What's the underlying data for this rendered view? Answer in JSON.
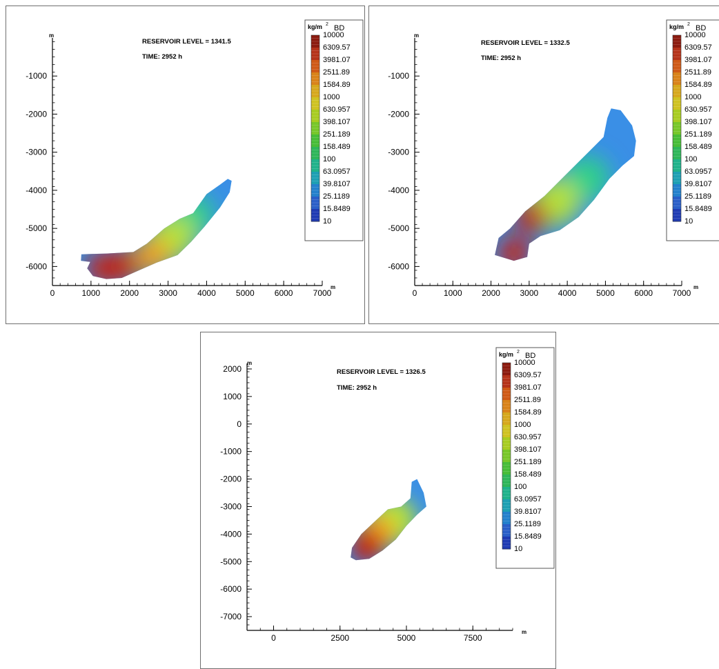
{
  "colors": {
    "high": "#8b1a0e",
    "mid": "#2db82f",
    "low": "#0a18a8"
  },
  "legend": {
    "unit": "kg/m",
    "unit_exp": "2",
    "title": "BD",
    "levels": [
      "10000",
      "6309.57",
      "3981.07",
      "2511.89",
      "1584.89",
      "1000",
      "630.957",
      "398.107",
      "251.189",
      "158.489",
      "100",
      "63.0957",
      "39.8107",
      "25.1189",
      "15.8489",
      "10"
    ]
  },
  "chart_data": [
    {
      "type": "heatmap",
      "header": "RESERVOIR LEVEL = 1341.5",
      "time_label": "TIME: 2952 h",
      "xlabel": "m",
      "ylabel": "m",
      "xlim": [
        0,
        7000
      ],
      "ylim": [
        -6500,
        0
      ],
      "x_ticks": [
        0,
        1000,
        2000,
        3000,
        4000,
        5000,
        6000,
        7000
      ],
      "y_ticks": [
        -1000,
        -2000,
        -3000,
        -4000,
        -5000,
        -6000
      ],
      "plume_outline": [
        [
          750,
          -5680
        ],
        [
          1400,
          -5660
        ],
        [
          2100,
          -5620
        ],
        [
          2450,
          -5400
        ],
        [
          2900,
          -5000
        ],
        [
          3300,
          -4750
        ],
        [
          3650,
          -4600
        ],
        [
          4000,
          -4100
        ],
        [
          4350,
          -3850
        ],
        [
          4550,
          -3700
        ],
        [
          4650,
          -3750
        ],
        [
          4600,
          -4050
        ],
        [
          4350,
          -4450
        ],
        [
          3950,
          -4950
        ],
        [
          3600,
          -5350
        ],
        [
          3250,
          -5700
        ],
        [
          2700,
          -5900
        ],
        [
          2250,
          -6100
        ],
        [
          1800,
          -6300
        ],
        [
          1400,
          -6330
        ],
        [
          1050,
          -6250
        ],
        [
          900,
          -6050
        ],
        [
          980,
          -5880
        ],
        [
          740,
          -5850
        ]
      ],
      "hotspots": [
        {
          "x": 1300,
          "y": -6050,
          "level": "high"
        },
        {
          "x": 1800,
          "y": -6000,
          "level": "high"
        },
        {
          "x": 2600,
          "y": -5700,
          "level": "mid-high"
        },
        {
          "x": 3100,
          "y": -5250,
          "level": "mid"
        },
        {
          "x": 3600,
          "y": -4700,
          "level": "low-mid"
        }
      ]
    },
    {
      "type": "heatmap",
      "header": "RESERVOIR LEVEL = 1332.5",
      "time_label": "TIME: 2952 h",
      "xlabel": "m",
      "ylabel": "m",
      "xlim": [
        0,
        7000
      ],
      "ylim": [
        -6500,
        0
      ],
      "x_ticks": [
        0,
        1000,
        2000,
        3000,
        4000,
        5000,
        6000,
        7000
      ],
      "y_ticks": [
        -1000,
        -2000,
        -3000,
        -4000,
        -5000,
        -6000
      ],
      "plume_outline": [
        [
          2100,
          -5700
        ],
        [
          2200,
          -5250
        ],
        [
          2500,
          -5000
        ],
        [
          2900,
          -4550
        ],
        [
          3400,
          -4150
        ],
        [
          4000,
          -3550
        ],
        [
          4550,
          -3000
        ],
        [
          4950,
          -2600
        ],
        [
          5050,
          -2100
        ],
        [
          5150,
          -1850
        ],
        [
          5400,
          -1900
        ],
        [
          5700,
          -2300
        ],
        [
          5800,
          -2700
        ],
        [
          5750,
          -3100
        ],
        [
          5450,
          -3350
        ],
        [
          5100,
          -3700
        ],
        [
          4700,
          -4250
        ],
        [
          4300,
          -4700
        ],
        [
          3800,
          -5050
        ],
        [
          3300,
          -5200
        ],
        [
          3000,
          -5400
        ],
        [
          2950,
          -5750
        ],
        [
          2600,
          -5850
        ]
      ],
      "hotspots": [
        {
          "x": 2600,
          "y": -5650,
          "level": "high"
        },
        {
          "x": 3050,
          "y": -4700,
          "level": "high"
        },
        {
          "x": 3700,
          "y": -4300,
          "level": "mid"
        },
        {
          "x": 4500,
          "y": -3700,
          "level": "low-mid"
        }
      ]
    },
    {
      "type": "heatmap",
      "header": "RESERVOIR LEVEL = 1326.5",
      "time_label": "TIME: 2952 h",
      "xlabel": "m",
      "ylabel": "m",
      "xlim": [
        -1000,
        9000
      ],
      "ylim": [
        -7500,
        2200
      ],
      "x_ticks": [
        0,
        2500,
        5000,
        7500
      ],
      "y_ticks": [
        2000,
        1000,
        0,
        -1000,
        -2000,
        -3000,
        -4000,
        -5000,
        -6000,
        -7000
      ],
      "plume_outline": [
        [
          2900,
          -4850
        ],
        [
          2950,
          -4500
        ],
        [
          3300,
          -4000
        ],
        [
          3800,
          -3550
        ],
        [
          4300,
          -3100
        ],
        [
          4800,
          -3000
        ],
        [
          5150,
          -2700
        ],
        [
          5200,
          -2100
        ],
        [
          5400,
          -2000
        ],
        [
          5650,
          -2500
        ],
        [
          5750,
          -3000
        ],
        [
          5400,
          -3300
        ],
        [
          5000,
          -3700
        ],
        [
          4600,
          -4200
        ],
        [
          4100,
          -4600
        ],
        [
          3600,
          -4900
        ],
        [
          3100,
          -4950
        ]
      ],
      "hotspots": [
        {
          "x": 3500,
          "y": -4450,
          "level": "high"
        },
        {
          "x": 3900,
          "y": -3950,
          "level": "mid-high"
        },
        {
          "x": 4500,
          "y": -3500,
          "level": "mid"
        }
      ]
    }
  ]
}
